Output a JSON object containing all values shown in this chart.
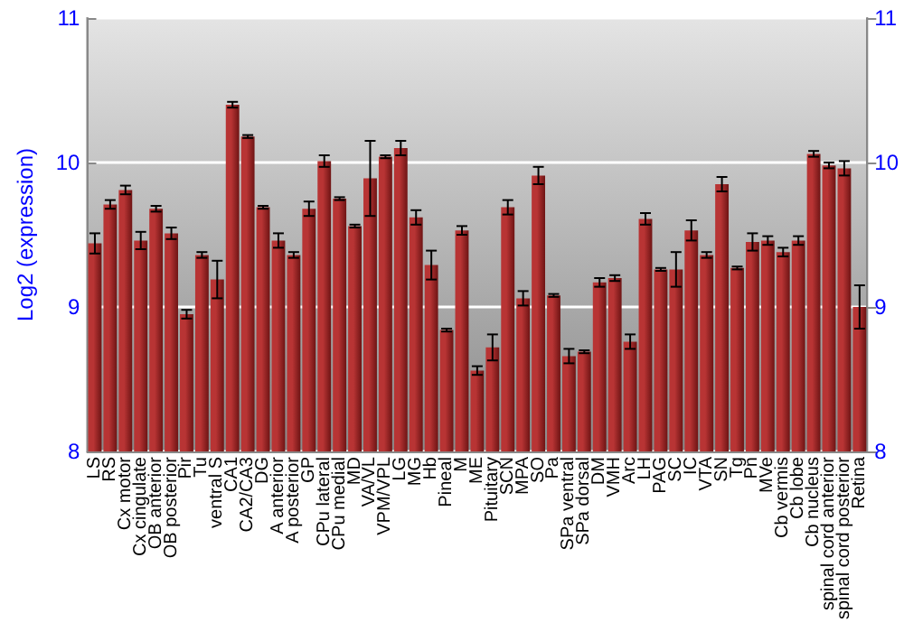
{
  "chart_data": {
    "type": "bar",
    "ylabel": "Log2 (expression)",
    "categories": [
      "LS",
      "RS",
      "Cx motor",
      "Cx cingulate",
      "OB anterior",
      "OB posterior",
      "Pir",
      "Tu",
      "ventral S",
      "CA1",
      "CA2/CA3",
      "DG",
      "A anterior",
      "A posterior",
      "GP",
      "CPu lateral",
      "CPu medial",
      "MD",
      "VA/VL",
      "VPM/VPL",
      "LG",
      "MG",
      "Hb",
      "Pineal",
      "M",
      "ME",
      "Pituitary",
      "SCN",
      "MPA",
      "SO",
      "Pa",
      "SPa ventral",
      "SPa dorsal",
      "DM",
      "VMH",
      "Arc",
      "LH",
      "PAG",
      "SC",
      "IC",
      "VTA",
      "SN",
      "Tg",
      "Pn",
      "MVe",
      "Cb vermis",
      "Cb lobe",
      "Cb nucleus",
      "spinal cord anterior",
      "spinal cord posterior",
      "Retina"
    ],
    "series": [
      {
        "color": "#b83434",
        "values": [
          9.44,
          9.71,
          9.81,
          9.46,
          9.68,
          9.51,
          8.95,
          9.36,
          9.19,
          10.4,
          10.18,
          9.69,
          9.46,
          9.36,
          9.68,
          10.01,
          9.75,
          9.56,
          9.89,
          10.04,
          10.1,
          9.62,
          9.29,
          8.84,
          9.53,
          8.56,
          8.72,
          9.69,
          9.06,
          9.91,
          9.08,
          8.66,
          8.69,
          9.17,
          9.2,
          8.76,
          9.61,
          9.26,
          9.26,
          9.53,
          9.36,
          9.85,
          9.27,
          9.45,
          9.46,
          9.38,
          9.46,
          10.06,
          9.98,
          9.96,
          9.0
        ],
        "errors": [
          0.07,
          0.03,
          0.03,
          0.06,
          0.02,
          0.04,
          0.03,
          0.02,
          0.13,
          0.02,
          0.01,
          0.01,
          0.05,
          0.02,
          0.05,
          0.04,
          0.01,
          0.01,
          0.26,
          0.01,
          0.05,
          0.05,
          0.1,
          0.01,
          0.03,
          0.03,
          0.09,
          0.05,
          0.05,
          0.06,
          0.01,
          0.05,
          0.01,
          0.03,
          0.02,
          0.05,
          0.04,
          0.01,
          0.12,
          0.07,
          0.02,
          0.05,
          0.01,
          0.06,
          0.03,
          0.03,
          0.03,
          0.02,
          0.02,
          0.05,
          0.15
        ]
      }
    ],
    "ylim": [
      8,
      11
    ],
    "yticks": [
      8,
      9,
      10,
      11
    ],
    "y2lim": [
      8,
      11
    ],
    "y2ticks": [
      8,
      9,
      10,
      11
    ],
    "grid": "y"
  }
}
